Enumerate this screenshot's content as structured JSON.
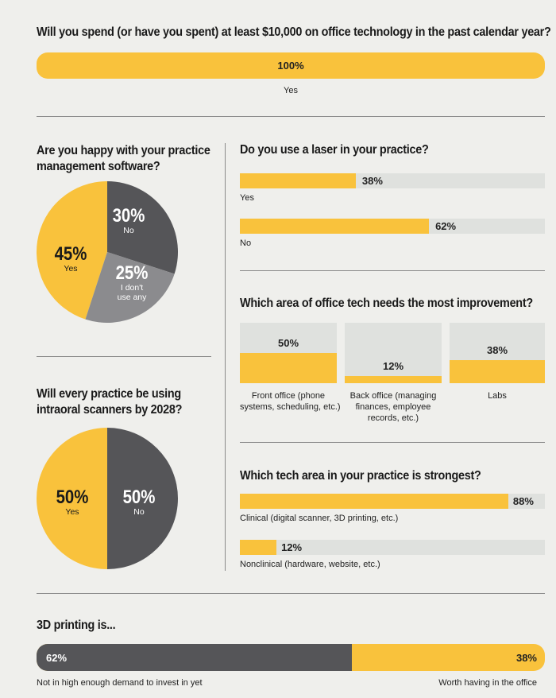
{
  "colors": {
    "yellow": "#f9c23c",
    "dark": "#555558",
    "mid": "#8b8b8e",
    "track": "#dfe1de",
    "background": "#efefec"
  },
  "q1": {
    "title": "Will you spend (or have you spent) at least $10,000 on office technology in the past calendar year?",
    "value_label": "100%",
    "category": "Yes"
  },
  "q2": {
    "title_line1": "Are you happy with your practice",
    "title_line2": "management software?"
  },
  "q3": {
    "title": "Do you use a laser in your practice?"
  },
  "q4": {
    "title": "Which area of office tech needs the most improvement?"
  },
  "q5": {
    "title_line1": "Will every practice be using",
    "title_line2": "intraoral scanners by 2028?"
  },
  "q6": {
    "title": "Which tech area in your practice is strongest?"
  },
  "q7": {
    "title": "3D printing is..."
  },
  "chart_data": [
    {
      "type": "bar",
      "title": "Will you spend (or have you spent) at least $10,000 on office technology in the past calendar year?",
      "categories": [
        "Yes"
      ],
      "values": [
        100
      ],
      "value_labels": [
        "100%"
      ],
      "ylim": [
        0,
        100
      ]
    },
    {
      "type": "pie",
      "title": "Are you happy with your practice management software?",
      "slices": [
        {
          "pct": "45%",
          "label": "Yes",
          "value": 45,
          "color": "#f9c23c"
        },
        {
          "pct": "30%",
          "label": "No",
          "value": 30,
          "color": "#555558"
        },
        {
          "pct": "25%",
          "label1": "I don't",
          "label2": "use any",
          "value": 25,
          "color": "#8b8b8e"
        }
      ]
    },
    {
      "type": "bar",
      "title": "Do you use a laser in your practice?",
      "categories": [
        "Yes",
        "No"
      ],
      "values": [
        38,
        62
      ],
      "value_labels": [
        "38%",
        "62%"
      ],
      "ylim": [
        0,
        100
      ]
    },
    {
      "type": "bar",
      "title": "Which area of office tech needs the most improvement?",
      "categories": [
        {
          "line1": "Front office (phone",
          "line2": "systems, scheduling, etc.)"
        },
        {
          "line1": "Back office (managing",
          "line2": "finances, employee",
          "line3": "records, etc.)"
        },
        {
          "line1": "Labs"
        }
      ],
      "values": [
        50,
        12,
        38
      ],
      "value_labels": [
        "50%",
        "12%",
        "38%"
      ],
      "ylim": [
        0,
        100
      ]
    },
    {
      "type": "pie",
      "title": "Will every practice be using intraoral scanners by 2028?",
      "slices": [
        {
          "pct": "50%",
          "label": "Yes",
          "value": 50,
          "color": "#f9c23c"
        },
        {
          "pct": "50%",
          "label": "No",
          "value": 50,
          "color": "#555558"
        }
      ]
    },
    {
      "type": "bar",
      "title": "Which tech area in your practice is strongest?",
      "categories": [
        "Clinical (digital scanner, 3D printing, etc.)",
        "Nonclinical (hardware, website, etc.)"
      ],
      "values": [
        88,
        12
      ],
      "value_labels": [
        "88%",
        "12%"
      ],
      "ylim": [
        0,
        100
      ]
    },
    {
      "type": "bar",
      "title": "3D printing is...",
      "categories": [
        "Not in high enough demand to invest in yet",
        "Worth having in the office"
      ],
      "values": [
        62,
        38
      ],
      "value_labels": [
        "62%",
        "38%"
      ],
      "ylim": [
        0,
        100
      ]
    }
  ]
}
